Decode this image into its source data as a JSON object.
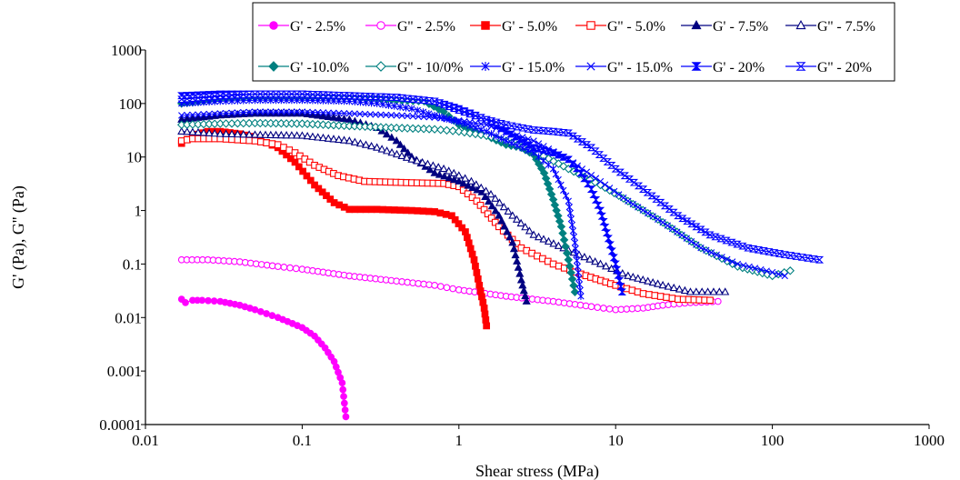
{
  "chart_data": {
    "type": "scatter",
    "title": "",
    "xlabel": "Shear stress (MPa)",
    "ylabel": "G' (Pa), G'' (Pa)",
    "xscale": "log",
    "yscale": "log",
    "xlim": [
      0.01,
      1000
    ],
    "ylim": [
      0.0001,
      1000
    ],
    "x_ticks": [
      "0.01",
      "0.1",
      "1",
      "10",
      "100",
      "1000"
    ],
    "y_ticks": [
      "0.0001",
      "0.001",
      "0.01",
      "0.1",
      "1",
      "10",
      "100",
      "1000"
    ],
    "grid": false,
    "legend_position": "top-right",
    "series": [
      {
        "name": "G' - 2.5%",
        "color": "#ff00ff",
        "marker": "circle",
        "filled": true,
        "x": [
          0.017,
          0.018,
          0.02,
          0.023,
          0.03,
          0.04,
          0.05,
          0.07,
          0.1,
          0.12,
          0.14,
          0.16,
          0.18,
          0.19
        ],
        "y": [
          0.022,
          0.019,
          0.021,
          0.021,
          0.02,
          0.017,
          0.014,
          0.01,
          0.0065,
          0.0045,
          0.0027,
          0.0015,
          0.0006,
          0.00014
        ]
      },
      {
        "name": "G'' - 2.5%",
        "color": "#ff00ff",
        "marker": "circle",
        "filled": false,
        "x": [
          0.017,
          0.025,
          0.04,
          0.07,
          0.1,
          0.2,
          0.4,
          0.7,
          1,
          2,
          4,
          7,
          10,
          15,
          20,
          30,
          45
        ],
        "y": [
          0.12,
          0.12,
          0.11,
          0.09,
          0.08,
          0.06,
          0.048,
          0.04,
          0.033,
          0.025,
          0.02,
          0.016,
          0.014,
          0.015,
          0.017,
          0.019,
          0.02
        ]
      },
      {
        "name": "G' - 5.0%",
        "color": "#ff0000",
        "marker": "square",
        "filled": true,
        "x": [
          0.017,
          0.02,
          0.025,
          0.03,
          0.04,
          0.05,
          0.07,
          0.09,
          0.12,
          0.16,
          0.2,
          0.3,
          0.5,
          0.7,
          0.9,
          1.1,
          1.25,
          1.35,
          1.45,
          1.5
        ],
        "y": [
          18,
          25,
          30,
          30,
          27,
          23,
          15,
          8,
          3,
          1.4,
          1.05,
          1.05,
          1.0,
          0.95,
          0.8,
          0.4,
          0.12,
          0.04,
          0.015,
          0.007
        ]
      },
      {
        "name": "G'' - 5.0%",
        "color": "#ff0000",
        "marker": "square",
        "filled": false,
        "x": [
          0.017,
          0.02,
          0.03,
          0.05,
          0.07,
          0.09,
          0.12,
          0.17,
          0.25,
          0.5,
          0.8,
          1.0,
          1.3,
          1.8,
          2.5,
          4,
          6,
          10,
          15,
          25,
          40
        ],
        "y": [
          20,
          22,
          22,
          20,
          17,
          12,
          7,
          4.5,
          3.5,
          3.3,
          3.2,
          2.8,
          1.5,
          0.5,
          0.2,
          0.1,
          0.065,
          0.04,
          0.028,
          0.022,
          0.021
        ]
      },
      {
        "name": "G' - 7.5%",
        "color": "#000080",
        "marker": "triangle",
        "filled": true,
        "x": [
          0.017,
          0.03,
          0.05,
          0.1,
          0.2,
          0.3,
          0.4,
          0.5,
          0.7,
          1,
          1.4,
          1.8,
          2.2,
          2.5,
          2.7
        ],
        "y": [
          50,
          60,
          65,
          65,
          50,
          35,
          20,
          10,
          5,
          3.5,
          2.2,
          0.8,
          0.25,
          0.05,
          0.02
        ]
      },
      {
        "name": "G'' - 7.5%",
        "color": "#000080",
        "marker": "triangle",
        "filled": false,
        "x": [
          0.017,
          0.03,
          0.05,
          0.1,
          0.2,
          0.3,
          0.5,
          0.8,
          1.0,
          1.2,
          1.6,
          2.2,
          3,
          5,
          8,
          12,
          20,
          30,
          50
        ],
        "y": [
          30,
          27,
          26,
          25,
          20,
          15,
          9,
          6,
          4.5,
          3.5,
          2,
          0.8,
          0.35,
          0.18,
          0.1,
          0.06,
          0.04,
          0.03,
          0.03
        ]
      },
      {
        "name": "G' -10.0%",
        "color": "#008080",
        "marker": "diamond",
        "filled": true,
        "x": [
          0.017,
          0.03,
          0.05,
          0.1,
          0.2,
          0.3,
          0.4,
          0.6,
          0.8,
          1.0,
          1.5,
          2,
          2.5,
          3,
          3.5,
          4,
          4.5,
          5,
          5.5
        ],
        "y": [
          100,
          120,
          130,
          130,
          130,
          125,
          115,
          110,
          70,
          40,
          25,
          17,
          15,
          11,
          5,
          1.6,
          0.5,
          0.12,
          0.03
        ]
      },
      {
        "name": "G'' - 10/0%",
        "color": "#008080",
        "marker": "diamond",
        "filled": false,
        "x": [
          0.017,
          0.03,
          0.05,
          0.1,
          0.2,
          0.4,
          0.7,
          1,
          1.5,
          2,
          3,
          5,
          8,
          12,
          20,
          35,
          60,
          100,
          130
        ],
        "y": [
          40,
          42,
          43,
          42,
          38,
          35,
          33,
          30,
          25,
          20,
          13,
          6,
          3,
          1.5,
          0.6,
          0.2,
          0.09,
          0.06,
          0.075
        ]
      },
      {
        "name": "G' - 15.0%",
        "color": "#0000ff",
        "marker": "star",
        "filled": true,
        "x": [
          0.017,
          0.03,
          0.05,
          0.1,
          0.2,
          0.3,
          0.5,
          0.7,
          1.0,
          1.5,
          2,
          3,
          4,
          5,
          5.5,
          6
        ],
        "y": [
          100,
          110,
          115,
          115,
          110,
          100,
          80,
          60,
          45,
          30,
          20,
          12,
          6,
          1.5,
          0.25,
          0.025
        ]
      },
      {
        "name": "G'' - 15.0%",
        "color": "#0000ff",
        "marker": "x",
        "filled": false,
        "x": [
          0.017,
          0.03,
          0.05,
          0.1,
          0.2,
          0.4,
          0.7,
          1,
          1.5,
          2,
          3,
          5,
          8,
          12,
          20,
          35,
          60,
          100,
          120
        ],
        "y": [
          60,
          65,
          70,
          70,
          65,
          60,
          55,
          48,
          40,
          30,
          20,
          9,
          3.5,
          1.5,
          0.6,
          0.2,
          0.1,
          0.07,
          0.06
        ]
      },
      {
        "name": "G' - 20%",
        "color": "#0000ff",
        "marker": "bowtie",
        "filled": true,
        "x": [
          0.017,
          0.03,
          0.05,
          0.1,
          0.2,
          0.4,
          0.7,
          1,
          1.5,
          2,
          3,
          4,
          5,
          6,
          7,
          8,
          9,
          10,
          11
        ],
        "y": [
          140,
          150,
          150,
          150,
          140,
          130,
          110,
          80,
          50,
          30,
          15,
          12,
          9,
          5,
          2.5,
          1,
          0.3,
          0.1,
          0.03
        ]
      },
      {
        "name": "G'' - 20%",
        "color": "#0000ff",
        "marker": "bowtie",
        "filled": false,
        "x": [
          0.017,
          0.03,
          0.05,
          0.1,
          0.2,
          0.4,
          0.7,
          1,
          1.5,
          2,
          3,
          4,
          5,
          7,
          10,
          15,
          25,
          40,
          70,
          120,
          200
        ],
        "y": [
          120,
          140,
          150,
          150,
          140,
          130,
          110,
          75,
          50,
          40,
          32,
          30,
          28,
          15,
          6,
          2.5,
          0.8,
          0.35,
          0.2,
          0.15,
          0.12
        ]
      }
    ]
  }
}
